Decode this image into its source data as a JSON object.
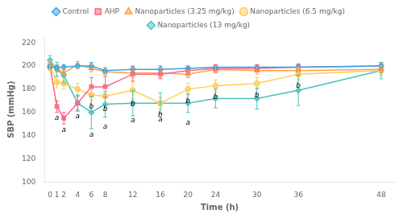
{
  "chart_data": {
    "type": "line",
    "xlabel": "Time (h)",
    "ylabel": "SBP (mmHg)",
    "x": [
      0,
      1,
      2,
      4,
      6,
      8,
      12,
      16,
      20,
      24,
      30,
      36,
      48
    ],
    "series": [
      {
        "name": "Control",
        "marker": "diamond",
        "values": [
          199,
          199,
          199,
          200,
          200,
          196,
          197,
          197,
          198,
          199,
          199,
          199,
          200
        ],
        "yerr": [
          2,
          2,
          2,
          2,
          3,
          3,
          3,
          3,
          2,
          2,
          2,
          2,
          3
        ]
      },
      {
        "name": "AHP",
        "marker": "square",
        "values": [
          200,
          165,
          155,
          168,
          182,
          182,
          193,
          193,
          196,
          198,
          198,
          199,
          200
        ],
        "yerr": [
          3,
          5,
          5,
          6,
          8,
          9,
          6,
          4,
          3,
          3,
          3,
          3,
          3
        ]
      },
      {
        "name": "Nanoparticles (3.25 mg/kg)",
        "marker": "triangle",
        "values": [
          200,
          198,
          194,
          201,
          198,
          195,
          194,
          194,
          193,
          197,
          196,
          196,
          197
        ],
        "yerr": [
          3,
          3,
          4,
          3,
          3,
          4,
          4,
          4,
          3,
          3,
          3,
          3,
          3
        ]
      },
      {
        "name": "Nanoparticles (6.5 mg/kg)",
        "marker": "circle",
        "values": [
          200,
          186,
          185,
          180,
          175,
          174,
          179,
          168,
          180,
          183,
          185,
          193,
          196
        ],
        "yerr": [
          4,
          5,
          5,
          5,
          5,
          6,
          7,
          5,
          5,
          5,
          5,
          5,
          4
        ]
      },
      {
        "name": "Nanoparticles (13 mg/kg)",
        "marker": "diamond",
        "values": [
          205,
          197,
          192,
          168,
          160,
          167,
          168,
          168,
          168,
          172,
          172,
          179,
          196
        ],
        "yerr": [
          4,
          6,
          7,
          7,
          14,
          11,
          11,
          9,
          8,
          8,
          9,
          13,
          7
        ]
      }
    ],
    "annotations": [
      {
        "text": "a",
        "x": 1,
        "y": 158
      },
      {
        "text": "a",
        "x": 2,
        "y": 148
      },
      {
        "text": "a",
        "x": 4,
        "y": 160
      },
      {
        "text": "a",
        "x": 6,
        "y": 144
      },
      {
        "text": "a",
        "x": 8,
        "y": 151
      },
      {
        "text": "a",
        "x": 12,
        "y": 156
      },
      {
        "text": "a",
        "x": 16,
        "y": 157
      },
      {
        "text": "a",
        "x": 20,
        "y": 154
      },
      {
        "text": "b",
        "x": 6,
        "y": 168
      },
      {
        "text": "b",
        "x": 8,
        "y": 166
      },
      {
        "text": "b",
        "x": 12,
        "y": 170
      },
      {
        "text": "b",
        "x": 16,
        "y": 161
      },
      {
        "text": "b",
        "x": 20,
        "y": 173
      },
      {
        "text": "b",
        "x": 24,
        "y": 176
      },
      {
        "text": "b",
        "x": 30,
        "y": 178
      },
      {
        "text": "b",
        "x": 36,
        "y": 186
      }
    ],
    "xlim": [
      -0.8,
      50
    ],
    "xticks": [
      0,
      1,
      2,
      4,
      6,
      8,
      12,
      16,
      20,
      24,
      30,
      36,
      48
    ],
    "ylim": [
      100,
      225
    ],
    "yticks": [
      100,
      120,
      140,
      160,
      180,
      200,
      220
    ],
    "grid": false,
    "legend": "top"
  }
}
